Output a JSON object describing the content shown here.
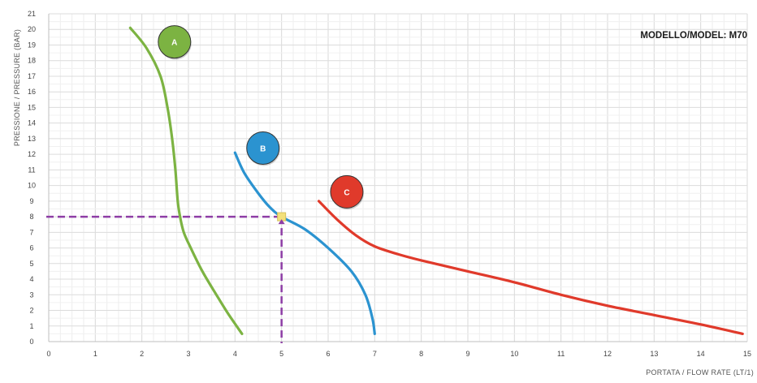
{
  "chart_data": {
    "type": "line",
    "title": "MODELLO/MODEL: M70",
    "xlabel": "PORTATA / FLOW RATE (LT/1)",
    "ylabel": "PRESSIONE / PRESSURE (BAR)",
    "xlim": [
      0,
      15
    ],
    "ylim": [
      0,
      21
    ],
    "x_ticks": [
      "0",
      "1",
      "2",
      "3",
      "4",
      "5",
      "6",
      "7",
      "8",
      "9",
      "10",
      "11",
      "12",
      "13",
      "14",
      "15"
    ],
    "y_ticks": [
      "0",
      "1",
      "2",
      "3",
      "4",
      "5",
      "6",
      "7",
      "8",
      "9",
      "10",
      "11",
      "12",
      "13",
      "14",
      "15",
      "16",
      "17",
      "18",
      "19",
      "20",
      "21"
    ],
    "grid": true,
    "series": [
      {
        "name": "A",
        "color": "#7cb342",
        "badge_at": [
          2.7,
          19.2
        ],
        "points": [
          [
            1.75,
            20.1
          ],
          [
            2.1,
            18.8
          ],
          [
            2.4,
            17.0
          ],
          [
            2.55,
            15.0
          ],
          [
            2.65,
            13.0
          ],
          [
            2.72,
            11.0
          ],
          [
            2.77,
            9.0
          ],
          [
            2.82,
            8.0
          ],
          [
            2.9,
            7.0
          ],
          [
            3.05,
            6.0
          ],
          [
            3.3,
            4.5
          ],
          [
            3.6,
            3.0
          ],
          [
            3.85,
            1.8
          ],
          [
            4.15,
            0.5
          ]
        ]
      },
      {
        "name": "B",
        "color": "#2b93d0",
        "badge_at": [
          4.6,
          12.4
        ],
        "points": [
          [
            4.0,
            12.1
          ],
          [
            4.2,
            10.8
          ],
          [
            4.5,
            9.5
          ],
          [
            4.75,
            8.6
          ],
          [
            5.0,
            8.0
          ],
          [
            5.5,
            7.2
          ],
          [
            6.0,
            6.0
          ],
          [
            6.5,
            4.5
          ],
          [
            6.8,
            3.0
          ],
          [
            6.95,
            1.5
          ],
          [
            7.0,
            0.5
          ]
        ]
      },
      {
        "name": "C",
        "color": "#e03a2b",
        "badge_at": [
          6.4,
          9.6
        ],
        "points": [
          [
            5.8,
            9.0
          ],
          [
            6.2,
            7.8
          ],
          [
            6.6,
            6.8
          ],
          [
            7.0,
            6.1
          ],
          [
            7.5,
            5.6
          ],
          [
            8.0,
            5.2
          ],
          [
            9.0,
            4.5
          ],
          [
            10.0,
            3.8
          ],
          [
            11.0,
            3.0
          ],
          [
            12.0,
            2.3
          ],
          [
            13.0,
            1.7
          ],
          [
            14.0,
            1.1
          ],
          [
            14.9,
            0.5
          ]
        ]
      }
    ],
    "operating_point": {
      "x": 5,
      "y": 8,
      "color": "#f3e07a",
      "line_color": "#8e3ea6"
    }
  }
}
